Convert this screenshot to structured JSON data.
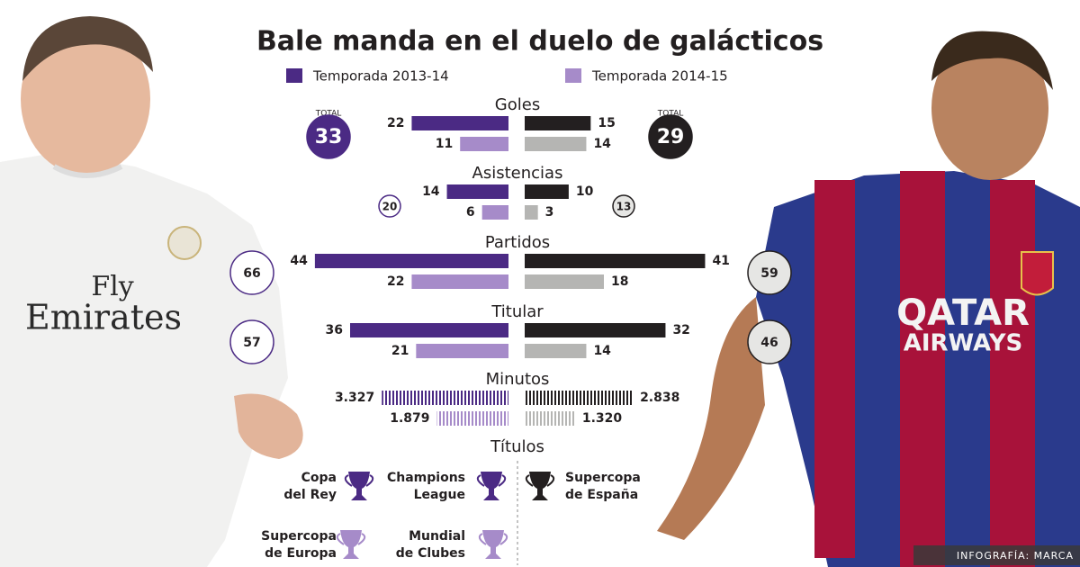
{
  "chart_data": {
    "type": "butterfly",
    "title": "Bale manda en el duelo de galácticos",
    "series": [
      {
        "name": "Temporada 2013-14",
        "color": "#4b2a84"
      },
      {
        "name": "Temporada 2014-15",
        "color": "#a68bc9"
      }
    ],
    "right_colors": [
      "#231f20",
      "#b5b5b3"
    ],
    "total_label": "TOTAL",
    "groups": [
      {
        "label": "Goles",
        "xlim": [
          0,
          45
        ],
        "left": [
          22,
          11
        ],
        "right": [
          15,
          14
        ],
        "totals": [
          33,
          29
        ]
      },
      {
        "label": "Asistencias",
        "xlim": [
          0,
          45
        ],
        "left": [
          14,
          6
        ],
        "right": [
          10,
          3
        ],
        "totals": [
          20,
          13
        ]
      },
      {
        "label": "Partidos",
        "xlim": [
          0,
          45
        ],
        "left": [
          44,
          22
        ],
        "right": [
          41,
          18
        ],
        "totals": [
          66,
          59
        ]
      },
      {
        "label": "Titular",
        "xlim": [
          0,
          45
        ],
        "left": [
          36,
          21
        ],
        "right": [
          32,
          14
        ],
        "totals": [
          57,
          46
        ]
      },
      {
        "label": "Minutos",
        "xlim": [
          0,
          5200
        ],
        "left": [
          3327,
          1879
        ],
        "right": [
          2838,
          1320
        ],
        "left_labels": [
          "3.327",
          "1.879"
        ],
        "right_labels": [
          "2.838",
          "1.320"
        ]
      }
    ],
    "titles": {
      "label": "Títulos",
      "left": [
        [
          "Copa",
          "del Rey"
        ],
        [
          "Champions",
          "League"
        ],
        [
          "Supercopa",
          "de Europa"
        ],
        [
          "Mundial",
          "de Clubes"
        ]
      ],
      "right": [
        [
          "Supercopa",
          "de España"
        ]
      ]
    },
    "jerseys": {
      "left": [
        "Fly",
        "Emirates"
      ],
      "right": [
        "QATAR",
        "AIRWAYS"
      ]
    },
    "source": "INFOGRAFÍA: MARCA"
  }
}
